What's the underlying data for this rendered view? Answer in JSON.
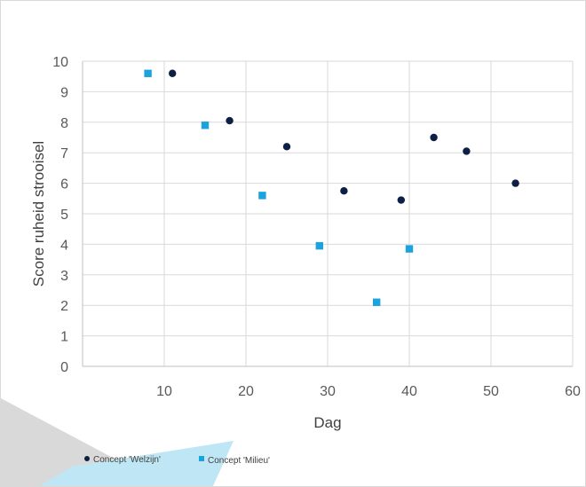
{
  "chart_data": {
    "type": "scatter",
    "title": "",
    "xlabel": "Dag",
    "ylabel": "Score ruheid strooisel",
    "xlim": [
      0,
      60
    ],
    "ylim": [
      0,
      10
    ],
    "x_ticks": [
      10,
      20,
      30,
      40,
      50,
      60
    ],
    "y_ticks": [
      0,
      1,
      2,
      3,
      4,
      5,
      6,
      7,
      8,
      9,
      10
    ],
    "grid": true,
    "legend_position": "bottom-left",
    "series": [
      {
        "name": "Concept 'Welzijn'",
        "marker": "circle",
        "color": "#0d1f45",
        "points": [
          {
            "x": 11,
            "y": 9.6
          },
          {
            "x": 18,
            "y": 8.05
          },
          {
            "x": 25,
            "y": 7.2
          },
          {
            "x": 32,
            "y": 5.75
          },
          {
            "x": 39,
            "y": 5.45
          },
          {
            "x": 43,
            "y": 7.5
          },
          {
            "x": 47,
            "y": 7.05
          },
          {
            "x": 53,
            "y": 6.0
          }
        ]
      },
      {
        "name": "Concept 'Milieu'",
        "marker": "square",
        "color": "#1aa3dc",
        "points": [
          {
            "x": 8,
            "y": 9.6
          },
          {
            "x": 15,
            "y": 7.9
          },
          {
            "x": 22,
            "y": 5.6
          },
          {
            "x": 29,
            "y": 3.95
          },
          {
            "x": 36,
            "y": 2.1
          },
          {
            "x": 40,
            "y": 3.85
          }
        ]
      }
    ]
  }
}
